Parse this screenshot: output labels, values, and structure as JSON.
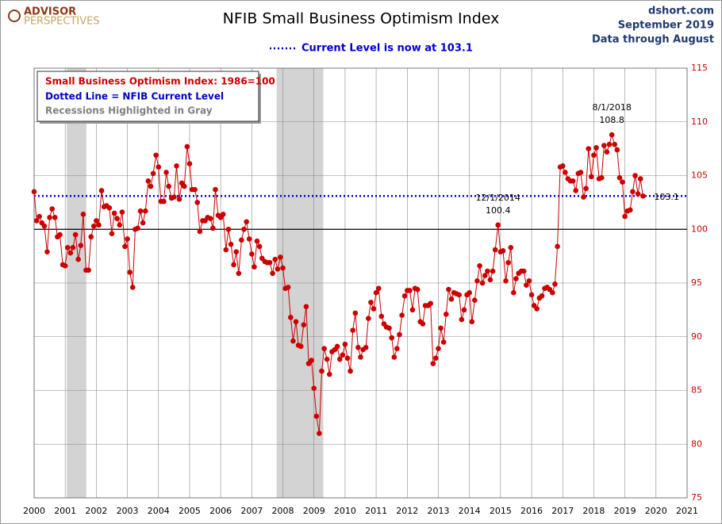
{
  "chart_data": {
    "type": "line",
    "title": "NFIB Small Business Optimism Index",
    "subtitle": "Current Level is now at 103.1",
    "logo": [
      "ADVISOR",
      "PERSPECTIVES"
    ],
    "source": [
      "dshort.com",
      "September 2019",
      "Data through August"
    ],
    "legend_notes": [
      {
        "text": "Dotted Line = NFIB Current Level",
        "color": "#0000cc"
      },
      {
        "text": "Recessions Highlighted in Gray",
        "color": "#808080"
      }
    ],
    "current_level": 103.1,
    "current_color": "#0000cc",
    "reference_line": 100,
    "recessions": [
      [
        2001.05,
        2001.68
      ],
      [
        2007.8,
        2009.3
      ]
    ],
    "annotations": [
      {
        "x": 2014.92,
        "date": "12/1/2014",
        "value": 100.4
      },
      {
        "x": 2018.58,
        "date": "8/1/2018",
        "value": 108.8
      }
    ],
    "x": [
      2000,
      2000.08,
      2000.17,
      2000.25,
      2000.33,
      2000.42,
      2000.5,
      2000.58,
      2000.67,
      2000.75,
      2000.83,
      2000.92,
      2001,
      2001.08,
      2001.17,
      2001.25,
      2001.33,
      2001.42,
      2001.5,
      2001.58,
      2001.67,
      2001.75,
      2001.83,
      2001.92,
      2002,
      2002.08,
      2002.17,
      2002.25,
      2002.33,
      2002.42,
      2002.5,
      2002.58,
      2002.67,
      2002.75,
      2002.83,
      2002.92,
      2003,
      2003.08,
      2003.17,
      2003.25,
      2003.33,
      2003.42,
      2003.5,
      2003.58,
      2003.67,
      2003.75,
      2003.83,
      2003.92,
      2004,
      2004.08,
      2004.17,
      2004.25,
      2004.33,
      2004.42,
      2004.5,
      2004.58,
      2004.67,
      2004.75,
      2004.83,
      2004.92,
      2005,
      2005.08,
      2005.17,
      2005.25,
      2005.33,
      2005.42,
      2005.5,
      2005.58,
      2005.67,
      2005.75,
      2005.83,
      2005.92,
      2006,
      2006.08,
      2006.17,
      2006.25,
      2006.33,
      2006.42,
      2006.5,
      2006.58,
      2006.67,
      2006.75,
      2006.83,
      2006.92,
      2007,
      2007.08,
      2007.17,
      2007.25,
      2007.33,
      2007.42,
      2007.5,
      2007.58,
      2007.67,
      2007.75,
      2007.83,
      2007.92,
      2008,
      2008.08,
      2008.17,
      2008.25,
      2008.33,
      2008.42,
      2008.5,
      2008.58,
      2008.67,
      2008.75,
      2008.83,
      2008.92,
      2009,
      2009.08,
      2009.17,
      2009.25,
      2009.33,
      2009.42,
      2009.5,
      2009.58,
      2009.67,
      2009.75,
      2009.83,
      2009.92,
      2010,
      2010.08,
      2010.17,
      2010.25,
      2010.33,
      2010.42,
      2010.5,
      2010.58,
      2010.67,
      2010.75,
      2010.83,
      2010.92,
      2011,
      2011.08,
      2011.17,
      2011.25,
      2011.33,
      2011.42,
      2011.5,
      2011.58,
      2011.67,
      2011.75,
      2011.83,
      2011.92,
      2012,
      2012.08,
      2012.17,
      2012.25,
      2012.33,
      2012.42,
      2012.5,
      2012.58,
      2012.67,
      2012.75,
      2012.83,
      2012.92,
      2013,
      2013.08,
      2013.17,
      2013.25,
      2013.33,
      2013.42,
      2013.5,
      2013.58,
      2013.67,
      2013.75,
      2013.83,
      2013.92,
      2014,
      2014.08,
      2014.17,
      2014.25,
      2014.33,
      2014.42,
      2014.5,
      2014.58,
      2014.67,
      2014.75,
      2014.83,
      2014.92,
      2015,
      2015.08,
      2015.17,
      2015.25,
      2015.33,
      2015.42,
      2015.5,
      2015.58,
      2015.67,
      2015.75,
      2015.83,
      2015.92,
      2016,
      2016.08,
      2016.17,
      2016.25,
      2016.33,
      2016.42,
      2016.5,
      2016.58,
      2016.67,
      2016.75,
      2016.83,
      2016.92,
      2017,
      2017.08,
      2017.17,
      2017.25,
      2017.33,
      2017.42,
      2017.5,
      2017.58,
      2017.67,
      2017.75,
      2017.83,
      2017.92,
      2018,
      2018.08,
      2018.17,
      2018.25,
      2018.33,
      2018.42,
      2018.5,
      2018.58,
      2018.67,
      2018.75,
      2018.83,
      2018.92,
      2019,
      2019.08,
      2019.17,
      2019.25,
      2019.33,
      2019.42,
      2019.5,
      2019.58
    ],
    "series": [
      {
        "name": "Small Business Optimism Index: 1986=100",
        "color": "#cc0000",
        "values": [
          103.5,
          100.8,
          101.2,
          100.6,
          100.3,
          97.9,
          101.1,
          101.9,
          101.1,
          99.3,
          99.5,
          96.7,
          96.6,
          98.3,
          97.8,
          98.3,
          99.5,
          97.2,
          98.5,
          101.4,
          96.2,
          96.2,
          99.3,
          100.3,
          100.8,
          100.4,
          103.6,
          102.1,
          102.2,
          102.0,
          99.6,
          101.5,
          101.0,
          100.4,
          101.6,
          98.4,
          99.1,
          96.0,
          94.6,
          100.0,
          100.1,
          101.7,
          100.6,
          101.7,
          104.5,
          104.0,
          105.2,
          106.9,
          105.8,
          102.6,
          102.6,
          105.3,
          104.0,
          102.9,
          103.0,
          105.9,
          102.8,
          104.3,
          104.0,
          107.7,
          106.1,
          103.7,
          103.7,
          102.5,
          99.8,
          100.8,
          100.8,
          101.1,
          101.0,
          100.1,
          103.7,
          101.3,
          101.1,
          101.4,
          98.1,
          100.0,
          98.6,
          96.7,
          97.9,
          95.9,
          99.0,
          100.0,
          100.7,
          99.1,
          97.7,
          96.5,
          98.9,
          98.4,
          97.3,
          97.0,
          96.9,
          96.9,
          95.9,
          97.2,
          96.3,
          97.4,
          96.4,
          94.5,
          94.6,
          91.8,
          89.6,
          91.4,
          89.2,
          89.1,
          91.1,
          92.8,
          87.5,
          87.8,
          85.2,
          82.6,
          81.0,
          86.8,
          88.9,
          87.9,
          86.5,
          88.6,
          88.8,
          89.1,
          87.9,
          88.3,
          89.3,
          88.0,
          86.8,
          90.6,
          92.2,
          89.0,
          88.1,
          88.8,
          89.0,
          91.7,
          93.2,
          92.6,
          94.1,
          94.5,
          91.9,
          91.2,
          90.9,
          90.8,
          89.9,
          88.1,
          88.9,
          90.2,
          92.0,
          93.8,
          94.3,
          94.3,
          92.5,
          94.5,
          94.4,
          91.4,
          91.2,
          92.9,
          92.9,
          93.1,
          87.5,
          88.0,
          88.9,
          90.8,
          89.5,
          92.1,
          94.4,
          93.5,
          94.1,
          94.0,
          93.9,
          91.6,
          92.5,
          93.9,
          94.1,
          91.4,
          93.4,
          95.2,
          96.6,
          95.0,
          95.7,
          96.1,
          95.3,
          96.1,
          98.1,
          100.4,
          97.9,
          98.0,
          95.2,
          96.9,
          98.3,
          94.1,
          95.4,
          95.9,
          96.1,
          96.1,
          94.8,
          95.2,
          93.9,
          92.9,
          92.6,
          93.6,
          93.8,
          94.5,
          94.6,
          94.4,
          94.1,
          94.9,
          98.4,
          105.8,
          105.9,
          105.3,
          104.7,
          104.5,
          104.5,
          103.6,
          105.2,
          105.3,
          103.0,
          103.8,
          107.5,
          104.9,
          106.9,
          107.6,
          104.7,
          104.8,
          107.8,
          107.2,
          107.9,
          108.8,
          107.9,
          107.4,
          104.8,
          104.4,
          101.2,
          101.7,
          101.8,
          103.5,
          105.0,
          103.3,
          104.7,
          103.1
        ]
      }
    ],
    "xlim": [
      2000,
      2021
    ],
    "xticks": [
      2000,
      2001,
      2002,
      2003,
      2004,
      2005,
      2006,
      2007,
      2008,
      2009,
      2010,
      2011,
      2012,
      2013,
      2014,
      2015,
      2016,
      2017,
      2018,
      2019,
      2020,
      2021
    ],
    "ylim": [
      75,
      115
    ],
    "yticks": [
      75,
      80,
      85,
      90,
      95,
      100,
      105,
      110,
      115
    ],
    "grid": true
  }
}
